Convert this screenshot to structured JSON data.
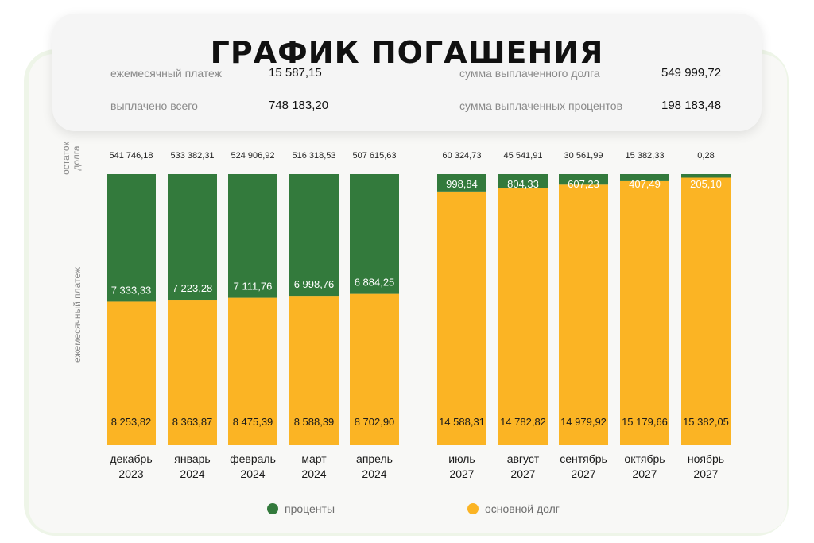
{
  "title": "ГРАФИК ПОГАШЕНИЯ",
  "summary": {
    "monthly_payment_label": "ежемесячный платеж",
    "monthly_payment_value": "15 587,15",
    "total_paid_label": "выплачено всего",
    "total_paid_value": "748 183,20",
    "principal_paid_label": "сумма выплаченного долга",
    "principal_paid_value": "549 999,72",
    "interest_paid_label": "сумма выплаченных процентов",
    "interest_paid_value": "198 183,48"
  },
  "axis": {
    "balance_label_line1": "остаток",
    "balance_label_line2": "долга",
    "payment_label": "ежемесячный платеж"
  },
  "legend": {
    "interest": "проценты",
    "principal": "основной долг"
  },
  "colors": {
    "interest": "#337a3c",
    "principal": "#fbb424"
  },
  "chart_data": {
    "type": "bar",
    "stacked": true,
    "categories": [
      [
        "декабрь",
        "2023"
      ],
      [
        "январь",
        "2024"
      ],
      [
        "февраль",
        "2024"
      ],
      [
        "март",
        "2024"
      ],
      [
        "апрель",
        "2024"
      ],
      [
        "июль",
        "2027"
      ],
      [
        "август",
        "2027"
      ],
      [
        "сентябрь",
        "2027"
      ],
      [
        "октябрь",
        "2027"
      ],
      [
        "ноябрь",
        "2027"
      ]
    ],
    "balance": [
      "541 746,18",
      "533 382,31",
      "524 906,92",
      "516 318,53",
      "507 615,63",
      "60 324,73",
      "45 541,91",
      "30 561,99",
      "15 382,33",
      "0,28"
    ],
    "series": [
      {
        "name": "основной долг",
        "values": [
          8253.82,
          8363.87,
          8475.39,
          8588.39,
          8702.9,
          14588.31,
          14782.82,
          14979.92,
          15179.66,
          15382.05
        ],
        "labels": [
          "8 253,82",
          "8 363,87",
          "8 475,39",
          "8 588,39",
          "8 702,90",
          "14 588,31",
          "14 782,82",
          "14 979,92",
          "15 179,66",
          "15 382,05"
        ]
      },
      {
        "name": "проценты",
        "values": [
          7333.33,
          7223.28,
          7111.76,
          6998.76,
          6884.25,
          998.84,
          804.33,
          607.23,
          407.49,
          205.1
        ],
        "labels": [
          "7 333,33",
          "7 223,28",
          "7 111,76",
          "6 998,76",
          "6 884,25",
          "998,84",
          "804,33",
          "607,23",
          "407,49",
          "205,10"
        ]
      }
    ],
    "ylim": [
      0,
      15587.15
    ]
  }
}
